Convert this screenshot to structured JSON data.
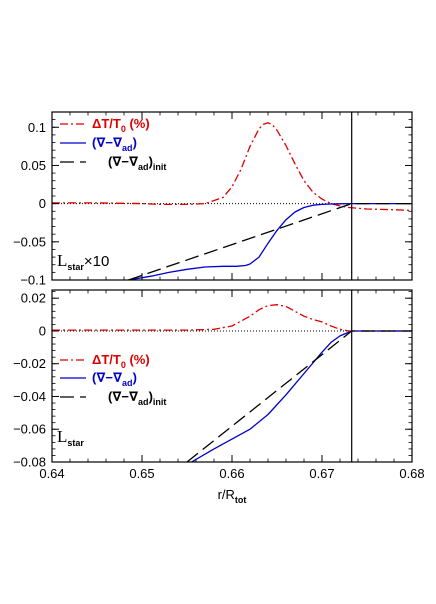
{
  "chart_data": [
    {
      "type": "line",
      "panel": "top",
      "annotation": {
        "main": "L",
        "sub": "star",
        "suffix": "×10"
      },
      "xlim": [
        0.64,
        0.68
      ],
      "ylim": [
        -0.1,
        0.12
      ],
      "x_ticks": [
        "0.64",
        "0.65",
        "0.66",
        "0.67",
        "0.68"
      ],
      "y_ticks": [
        -0.1,
        -0.05,
        0,
        0.05,
        0.1
      ],
      "y_tick_labels": [
        "−0.1",
        "−0.05",
        "0",
        "0.05",
        "0.1"
      ],
      "vline_x": 0.6733,
      "zero_line": true,
      "legend": [
        {
          "key": "dT",
          "label_parts": [
            "ΔT/T",
            "0",
            " (%)"
          ],
          "color": "#dd0000",
          "style": "dashdot"
        },
        {
          "key": "grad",
          "label_parts": [
            "(∇−∇",
            "ad",
            ")"
          ],
          "color": "#0000cc",
          "style": "solid"
        },
        {
          "key": "init",
          "label_parts": [
            "(∇−∇",
            "ad",
            ")",
            "init"
          ],
          "color": "#000000",
          "style": "dashed"
        }
      ],
      "series": [
        {
          "name": "ΔT/T0 (%)",
          "color": "#dd0000",
          "style": "dashdot",
          "x": [
            0.64,
            0.645,
            0.65,
            0.652,
            0.655,
            0.657,
            0.659,
            0.66,
            0.661,
            0.662,
            0.663,
            0.6635,
            0.664,
            0.6645,
            0.665,
            0.666,
            0.667,
            0.668,
            0.669,
            0.67,
            0.671,
            0.672,
            0.673,
            0.675,
            0.678,
            0.68
          ],
          "y": [
            0.001,
            0.001,
            0.0,
            -0.001,
            -0.001,
            0.0,
            0.008,
            0.022,
            0.045,
            0.075,
            0.098,
            0.104,
            0.106,
            0.103,
            0.096,
            0.076,
            0.052,
            0.03,
            0.015,
            0.006,
            0.0,
            -0.003,
            -0.005,
            -0.007,
            -0.008,
            -0.009
          ]
        },
        {
          "name": "(∇−∇ad)",
          "color": "#0000cc",
          "style": "solid",
          "x": [
            0.6485,
            0.651,
            0.653,
            0.655,
            0.657,
            0.659,
            0.6605,
            0.6615,
            0.662,
            0.663,
            0.664,
            0.665,
            0.666,
            0.667,
            0.668,
            0.669,
            0.67,
            0.671,
            0.672,
            0.6733,
            0.675,
            0.68
          ],
          "y": [
            -0.1,
            -0.095,
            -0.09,
            -0.086,
            -0.083,
            -0.082,
            -0.082,
            -0.081,
            -0.079,
            -0.07,
            -0.052,
            -0.035,
            -0.021,
            -0.011,
            -0.005,
            -0.002,
            -0.001,
            -0.0005,
            -0.0002,
            0.0,
            0.0,
            0.0
          ]
        },
        {
          "name": "(∇−∇ad)init",
          "color": "#000000",
          "style": "dashed",
          "x": [
            0.6485,
            0.6733,
            0.68
          ],
          "y": [
            -0.1,
            0.0,
            0.0
          ]
        }
      ]
    },
    {
      "type": "line",
      "panel": "bottom",
      "xlabel_parts": [
        "r/R",
        "tot"
      ],
      "annotation": {
        "main": "L",
        "sub": "star",
        "suffix": ""
      },
      "xlim": [
        0.64,
        0.68
      ],
      "ylim": [
        -0.08,
        0.025
      ],
      "x_ticks": [
        "0.64",
        "0.65",
        "0.66",
        "0.67",
        "0.68"
      ],
      "y_ticks": [
        -0.08,
        -0.06,
        -0.04,
        -0.02,
        0,
        0.02
      ],
      "y_tick_labels": [
        "−0.08",
        "−0.06",
        "−0.04",
        "−0.02",
        "0",
        "0.02"
      ],
      "vline_x": 0.6733,
      "zero_line": true,
      "legend": [
        {
          "key": "dT",
          "label_parts": [
            "ΔT/T",
            "0",
            " (%)"
          ],
          "color": "#dd0000",
          "style": "dashdot"
        },
        {
          "key": "grad",
          "label_parts": [
            "(∇−∇",
            "ad",
            ")"
          ],
          "color": "#0000cc",
          "style": "solid"
        },
        {
          "key": "init",
          "label_parts": [
            "(∇−∇",
            "ad",
            ")",
            "init"
          ],
          "color": "#000000",
          "style": "dashed"
        }
      ],
      "series": [
        {
          "name": "ΔT/T0 (%)",
          "color": "#dd0000",
          "style": "dashdot",
          "x": [
            0.64,
            0.645,
            0.65,
            0.655,
            0.658,
            0.66,
            0.662,
            0.663,
            0.664,
            0.665,
            0.666,
            0.667,
            0.668,
            0.669,
            0.67,
            0.671,
            0.672,
            0.673,
            0.675,
            0.68
          ],
          "y": [
            0.0005,
            0.0005,
            0.0005,
            0.0005,
            0.001,
            0.003,
            0.009,
            0.013,
            0.0155,
            0.016,
            0.015,
            0.012,
            0.009,
            0.007,
            0.0055,
            0.003,
            0.001,
            0.0,
            0.0,
            0.0
          ]
        },
        {
          "name": "(∇−∇ad)",
          "color": "#0000cc",
          "style": "solid",
          "x": [
            0.6555,
            0.658,
            0.66,
            0.662,
            0.664,
            0.666,
            0.668,
            0.67,
            0.671,
            0.672,
            0.6733,
            0.675,
            0.68
          ],
          "y": [
            -0.08,
            -0.072,
            -0.066,
            -0.06,
            -0.051,
            -0.039,
            -0.026,
            -0.013,
            -0.007,
            -0.003,
            0.0,
            0.0,
            0.0
          ]
        },
        {
          "name": "(∇−∇ad)init",
          "color": "#000000",
          "style": "dashed",
          "x": [
            0.655,
            0.6733,
            0.68
          ],
          "y": [
            -0.08,
            0.0,
            0.0
          ]
        }
      ]
    }
  ]
}
